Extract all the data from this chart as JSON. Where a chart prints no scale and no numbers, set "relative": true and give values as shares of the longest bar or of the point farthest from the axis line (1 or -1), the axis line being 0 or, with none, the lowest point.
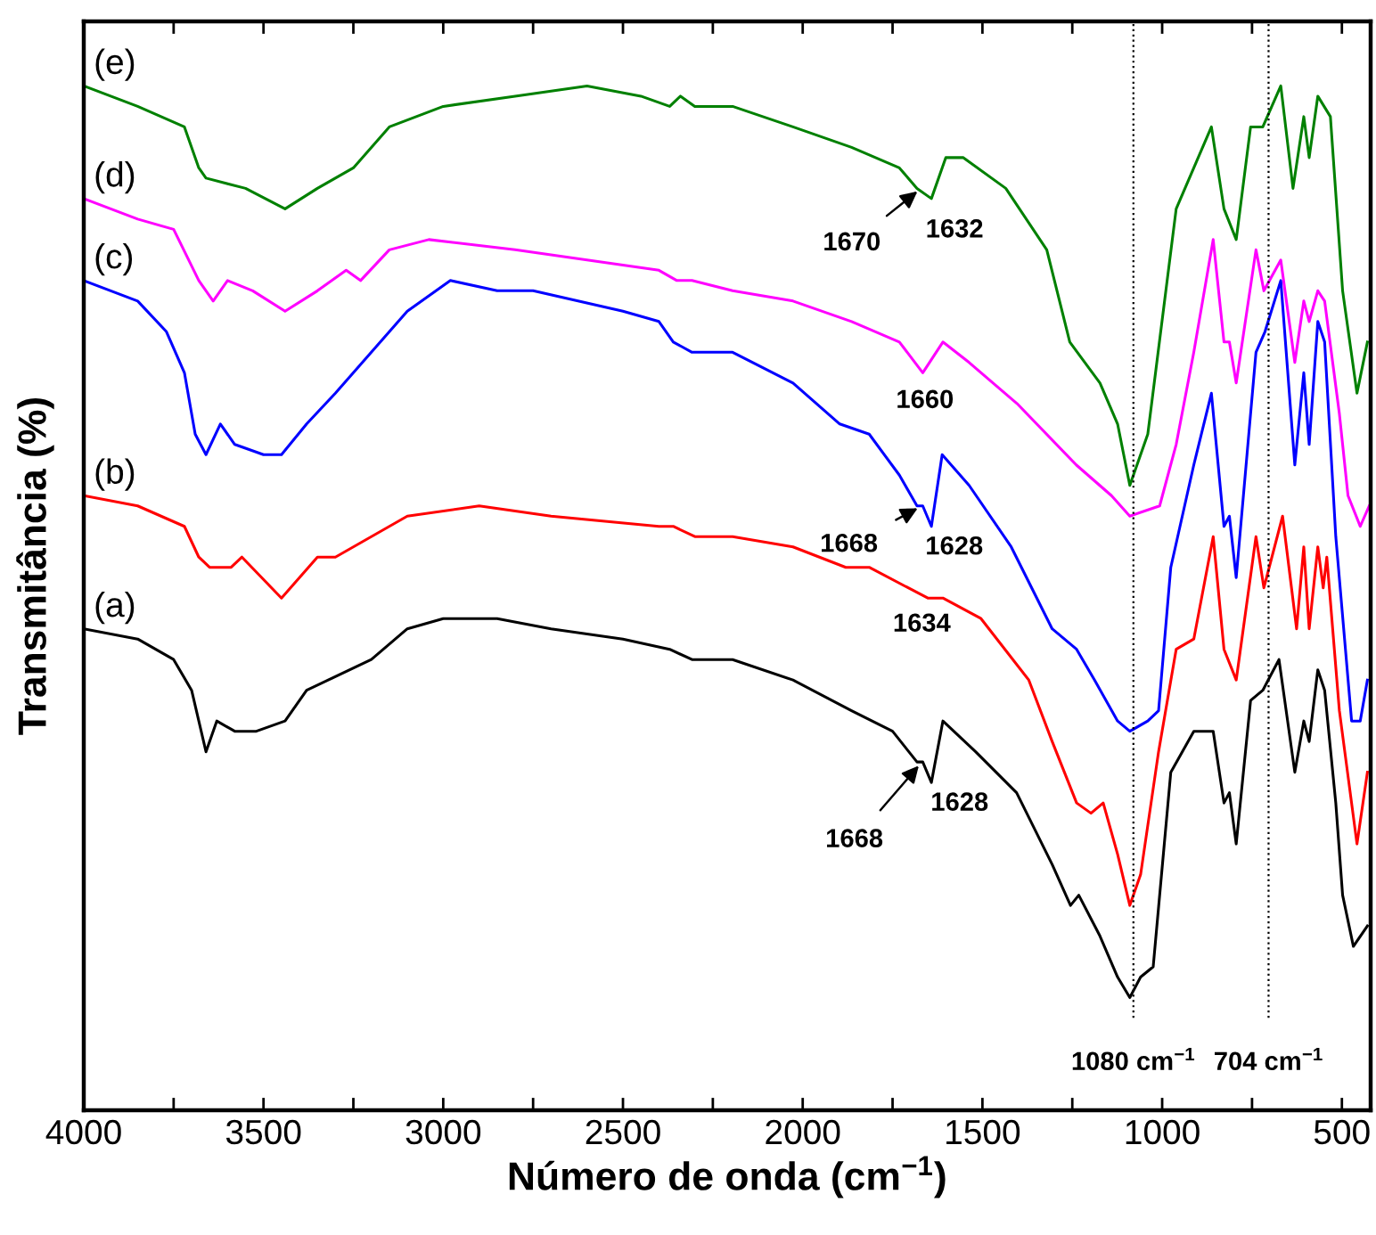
{
  "chart_data": {
    "type": "line",
    "relative": true,
    "xlabel": "Número de onda (cm$^{−1}$)",
    "ylabel": "Transmitância (%)",
    "tick_labels": "x",
    "xlim": [
      4000,
      420
    ],
    "xticks": [
      4000,
      {
        "value": 3750,
        "label": null
      },
      3500,
      {
        "value": 3250,
        "label": null
      },
      3000,
      {
        "value": 2750,
        "label": null
      },
      2500,
      {
        "value": 2250,
        "label": null
      },
      2000,
      {
        "value": 1750,
        "label": null
      },
      1500,
      {
        "value": 1250,
        "label": null
      },
      1000,
      {
        "value": 750,
        "label": null
      },
      500
    ],
    "line_style": "solid",
    "series": [
      {
        "name": "(a)",
        "color": "#000000",
        "x": [
          4000,
          3850,
          3750,
          3700,
          3660,
          3630,
          3580,
          3520,
          3440,
          3380,
          3320,
          3200,
          3100,
          3000,
          2950,
          2850,
          2700,
          2500,
          2370,
          2308,
          2195,
          2027,
          1864,
          1750,
          1682,
          1666,
          1642,
          1610,
          1519,
          1405,
          1306,
          1255,
          1232,
          1173,
          1124,
          1090,
          1060,
          1025,
          976,
          912,
          858,
          828,
          813,
          794,
          754,
          720,
          675,
          631,
          606,
          591,
          567,
          548,
          517,
          498,
          468,
          429
        ],
        "values": [
          0.47,
          0.46,
          0.44,
          0.41,
          0.35,
          0.38,
          0.37,
          0.37,
          0.38,
          0.41,
          0.42,
          0.44,
          0.47,
          0.48,
          0.48,
          0.48,
          0.47,
          0.46,
          0.45,
          0.44,
          0.44,
          0.42,
          0.39,
          0.37,
          0.34,
          0.34,
          0.32,
          0.38,
          0.35,
          0.31,
          0.24,
          0.2,
          0.21,
          0.17,
          0.13,
          0.11,
          0.13,
          0.14,
          0.33,
          0.37,
          0.37,
          0.3,
          0.31,
          0.26,
          0.4,
          0.41,
          0.44,
          0.33,
          0.38,
          0.36,
          0.43,
          0.41,
          0.3,
          0.21,
          0.16,
          0.18
        ]
      },
      {
        "name": "(b)",
        "color": "#ff0000",
        "x": [
          4000,
          3850,
          3720,
          3680,
          3650,
          3590,
          3560,
          3450,
          3350,
          3300,
          3100,
          2900,
          2700,
          2400,
          2360,
          2300,
          2195,
          2027,
          1880,
          1815,
          1652,
          1610,
          1504,
          1371,
          1306,
          1238,
          1198,
          1164,
          1124,
          1090,
          1060,
          1010,
          961,
          912,
          858,
          828,
          794,
          739,
          717,
          665,
          626,
          606,
          591,
          567,
          552,
          542,
          507,
          458,
          429
        ],
        "values": [
          0.6,
          0.59,
          0.57,
          0.54,
          0.53,
          0.53,
          0.54,
          0.5,
          0.54,
          0.54,
          0.58,
          0.59,
          0.58,
          0.57,
          0.57,
          0.56,
          0.56,
          0.55,
          0.53,
          0.53,
          0.5,
          0.5,
          0.48,
          0.42,
          0.36,
          0.3,
          0.29,
          0.3,
          0.25,
          0.2,
          0.23,
          0.35,
          0.45,
          0.46,
          0.56,
          0.45,
          0.42,
          0.56,
          0.51,
          0.58,
          0.47,
          0.55,
          0.47,
          0.55,
          0.51,
          0.54,
          0.39,
          0.26,
          0.33
        ]
      },
      {
        "name": "(c)",
        "color": "#0000ff",
        "x": [
          4000,
          3850,
          3770,
          3720,
          3690,
          3660,
          3620,
          3580,
          3500,
          3450,
          3380,
          3300,
          3200,
          3100,
          2980,
          2850,
          2750,
          2500,
          2400,
          2360,
          2308,
          2195,
          2027,
          1897,
          1815,
          1731,
          1682,
          1666,
          1642,
          1612,
          1537,
          1420,
          1306,
          1238,
          1188,
          1124,
          1090,
          1040,
          1010,
          976,
          912,
          863,
          828,
          813,
          794,
          739,
          714,
          670,
          631,
          606,
          591,
          567,
          548,
          517,
          473,
          449,
          429
        ],
        "values": [
          0.81,
          0.79,
          0.76,
          0.72,
          0.66,
          0.64,
          0.67,
          0.65,
          0.64,
          0.64,
          0.67,
          0.7,
          0.74,
          0.78,
          0.81,
          0.8,
          0.8,
          0.78,
          0.77,
          0.75,
          0.74,
          0.74,
          0.71,
          0.67,
          0.66,
          0.62,
          0.59,
          0.59,
          0.57,
          0.64,
          0.61,
          0.55,
          0.47,
          0.45,
          0.42,
          0.38,
          0.37,
          0.38,
          0.39,
          0.53,
          0.63,
          0.7,
          0.57,
          0.58,
          0.52,
          0.74,
          0.76,
          0.81,
          0.63,
          0.72,
          0.65,
          0.77,
          0.75,
          0.56,
          0.38,
          0.38,
          0.42
        ]
      },
      {
        "name": "(d)",
        "color": "#ff00ff",
        "x": [
          4000,
          3850,
          3750,
          3680,
          3640,
          3600,
          3530,
          3440,
          3350,
          3270,
          3230,
          3150,
          3040,
          2800,
          2600,
          2400,
          2350,
          2308,
          2195,
          2027,
          1864,
          1731,
          1666,
          1610,
          1537,
          1404,
          1239,
          1141,
          1090,
          1007,
          961,
          912,
          858,
          828,
          813,
          794,
          739,
          717,
          670,
          631,
          606,
          591,
          567,
          548,
          507,
          483,
          449,
          424
        ],
        "values": [
          0.89,
          0.87,
          0.86,
          0.81,
          0.79,
          0.81,
          0.8,
          0.78,
          0.8,
          0.82,
          0.81,
          0.84,
          0.85,
          0.84,
          0.83,
          0.82,
          0.81,
          0.81,
          0.8,
          0.79,
          0.77,
          0.75,
          0.72,
          0.75,
          0.73,
          0.69,
          0.63,
          0.6,
          0.58,
          0.59,
          0.65,
          0.74,
          0.85,
          0.75,
          0.75,
          0.71,
          0.84,
          0.8,
          0.83,
          0.73,
          0.79,
          0.77,
          0.8,
          0.79,
          0.68,
          0.6,
          0.57,
          0.59
        ]
      },
      {
        "name": "(e)",
        "color": "#008000",
        "x": [
          4000,
          3850,
          3720,
          3680,
          3660,
          3550,
          3440,
          3350,
          3250,
          3150,
          3000,
          2800,
          2600,
          2450,
          2370,
          2340,
          2300,
          2195,
          2027,
          1864,
          1731,
          1682,
          1642,
          1602,
          1553,
          1435,
          1321,
          1257,
          1173,
          1124,
          1090,
          1040,
          961,
          863,
          828,
          794,
          754,
          720,
          670,
          636,
          606,
          591,
          567,
          532,
          498,
          458,
          429
        ],
        "values": [
          1.0,
          0.98,
          0.96,
          0.92,
          0.91,
          0.9,
          0.88,
          0.9,
          0.92,
          0.96,
          0.98,
          0.99,
          1.0,
          0.99,
          0.98,
          0.99,
          0.98,
          0.98,
          0.96,
          0.94,
          0.92,
          0.9,
          0.89,
          0.93,
          0.93,
          0.9,
          0.84,
          0.75,
          0.71,
          0.67,
          0.61,
          0.66,
          0.88,
          0.96,
          0.88,
          0.85,
          0.96,
          0.96,
          1.0,
          0.9,
          0.97,
          0.93,
          0.99,
          0.97,
          0.8,
          0.7,
          0.75
        ]
      }
    ],
    "ref_lines": [
      {
        "axis": "x",
        "value": 1080,
        "label": "1080 cm$^{−1}$",
        "color": "#000000",
        "line_style": "dotted"
      },
      {
        "axis": "x",
        "value": 704,
        "label": "704 cm$^{−1}$",
        "color": "#000000",
        "line_style": "dotted"
      }
    ],
    "annotations": [
      {
        "text": "1670",
        "x": 1670,
        "y": 0.9
      },
      {
        "text": "1632",
        "x": 1632,
        "y": 0.89
      },
      {
        "text": "1660",
        "x": 1660,
        "y": 0.72
      },
      {
        "text": "1668",
        "x": 1668,
        "y": 0.59
      },
      {
        "text": "1628",
        "x": 1628,
        "y": 0.57
      },
      {
        "text": "1634",
        "x": 1634,
        "y": 0.5
      },
      {
        "text": "1668",
        "x": 1668,
        "y": 0.34
      },
      {
        "text": "1628",
        "x": 1628,
        "y": 0.32
      }
    ]
  }
}
